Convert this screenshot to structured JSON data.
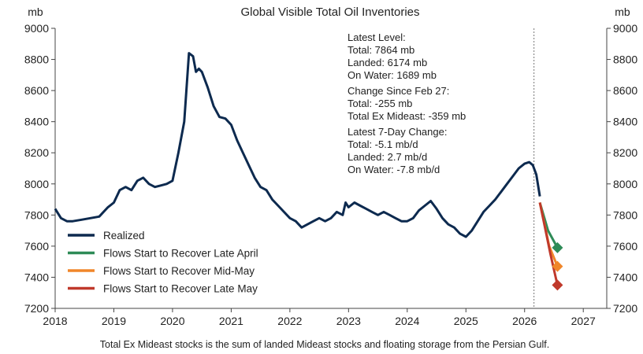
{
  "chart_data": {
    "type": "line",
    "title": "Global Visible Total Oil Inventories",
    "y_unit_left": "mb",
    "y_unit_right": "mb",
    "xlim": [
      2018,
      2027.4
    ],
    "ylim": [
      7200,
      9000
    ],
    "x_ticks": [
      "2018",
      "2019",
      "2020",
      "2021",
      "2022",
      "2023",
      "2024",
      "2025",
      "2026",
      "2027"
    ],
    "y_ticks": [
      "7200",
      "7400",
      "7600",
      "7800",
      "8000",
      "8200",
      "8400",
      "8600",
      "8800",
      "9000"
    ],
    "grid": false,
    "legend_position": "bottom-left",
    "vertical_marker_x": 2026.16,
    "series": [
      {
        "name": "Realized",
        "color": "#0d2a4f",
        "x": [
          2018.0,
          2018.1,
          2018.2,
          2018.3,
          2018.45,
          2018.6,
          2018.75,
          2018.9,
          2019.0,
          2019.1,
          2019.2,
          2019.3,
          2019.4,
          2019.5,
          2019.6,
          2019.7,
          2019.8,
          2019.9,
          2020.0,
          2020.1,
          2020.2,
          2020.28,
          2020.35,
          2020.4,
          2020.45,
          2020.5,
          2020.6,
          2020.7,
          2020.8,
          2020.9,
          2021.0,
          2021.1,
          2021.2,
          2021.3,
          2021.4,
          2021.5,
          2021.6,
          2021.7,
          2021.8,
          2021.9,
          2022.0,
          2022.1,
          2022.2,
          2022.3,
          2022.4,
          2022.5,
          2022.6,
          2022.7,
          2022.8,
          2022.9,
          2022.95,
          2023.0,
          2023.1,
          2023.2,
          2023.3,
          2023.4,
          2023.5,
          2023.6,
          2023.7,
          2023.8,
          2023.9,
          2024.0,
          2024.1,
          2024.2,
          2024.3,
          2024.4,
          2024.5,
          2024.6,
          2024.7,
          2024.8,
          2024.9,
          2025.0,
          2025.1,
          2025.2,
          2025.3,
          2025.4,
          2025.5,
          2025.6,
          2025.7,
          2025.8,
          2025.9,
          2026.0,
          2026.08,
          2026.14,
          2026.2,
          2026.26
        ],
        "y": [
          7840,
          7780,
          7760,
          7760,
          7770,
          7780,
          7790,
          7850,
          7880,
          7960,
          7980,
          7960,
          8020,
          8040,
          8000,
          7980,
          7990,
          8000,
          8020,
          8200,
          8400,
          8840,
          8820,
          8720,
          8740,
          8720,
          8620,
          8500,
          8430,
          8420,
          8380,
          8280,
          8200,
          8120,
          8040,
          7980,
          7960,
          7900,
          7860,
          7820,
          7780,
          7760,
          7720,
          7740,
          7760,
          7780,
          7760,
          7780,
          7820,
          7800,
          7880,
          7850,
          7880,
          7860,
          7840,
          7820,
          7800,
          7820,
          7800,
          7780,
          7760,
          7760,
          7780,
          7830,
          7860,
          7890,
          7840,
          7780,
          7740,
          7720,
          7680,
          7660,
          7700,
          7760,
          7820,
          7860,
          7900,
          7950,
          8000,
          8050,
          8100,
          8130,
          8140,
          8120,
          8060,
          7920
        ]
      },
      {
        "name": "Flows Start to Recover Late April",
        "color": "#2e8b57",
        "x": [
          2026.26,
          2026.4,
          2026.56
        ],
        "y": [
          7880,
          7700,
          7590
        ]
      },
      {
        "name": "Flows Start to Recover Mid-May",
        "color": "#f0862a",
        "x": [
          2026.26,
          2026.42,
          2026.56
        ],
        "y": [
          7880,
          7600,
          7470
        ]
      },
      {
        "name": "Flows Start to Recover Late May",
        "color": "#c0392b",
        "x": [
          2026.26,
          2026.44,
          2026.56
        ],
        "y": [
          7880,
          7550,
          7350
        ]
      }
    ],
    "annotations": [
      "Latest Level:",
      "Total: 7864 mb",
      "Landed: 6174 mb",
      "On Water: 1689 mb",
      "Change Since Feb 27:",
      "Total: -255 mb",
      "Total Ex Mideast: -359 mb",
      "Latest 7-Day Change:",
      "Total: -5.1 mb/d",
      "Landed: 2.7 mb/d",
      "On Water: -7.8 mb/d"
    ],
    "footnote": "Total Ex Mideast stocks is the sum of landed Mideast stocks and floating storage from the Persian Gulf."
  }
}
